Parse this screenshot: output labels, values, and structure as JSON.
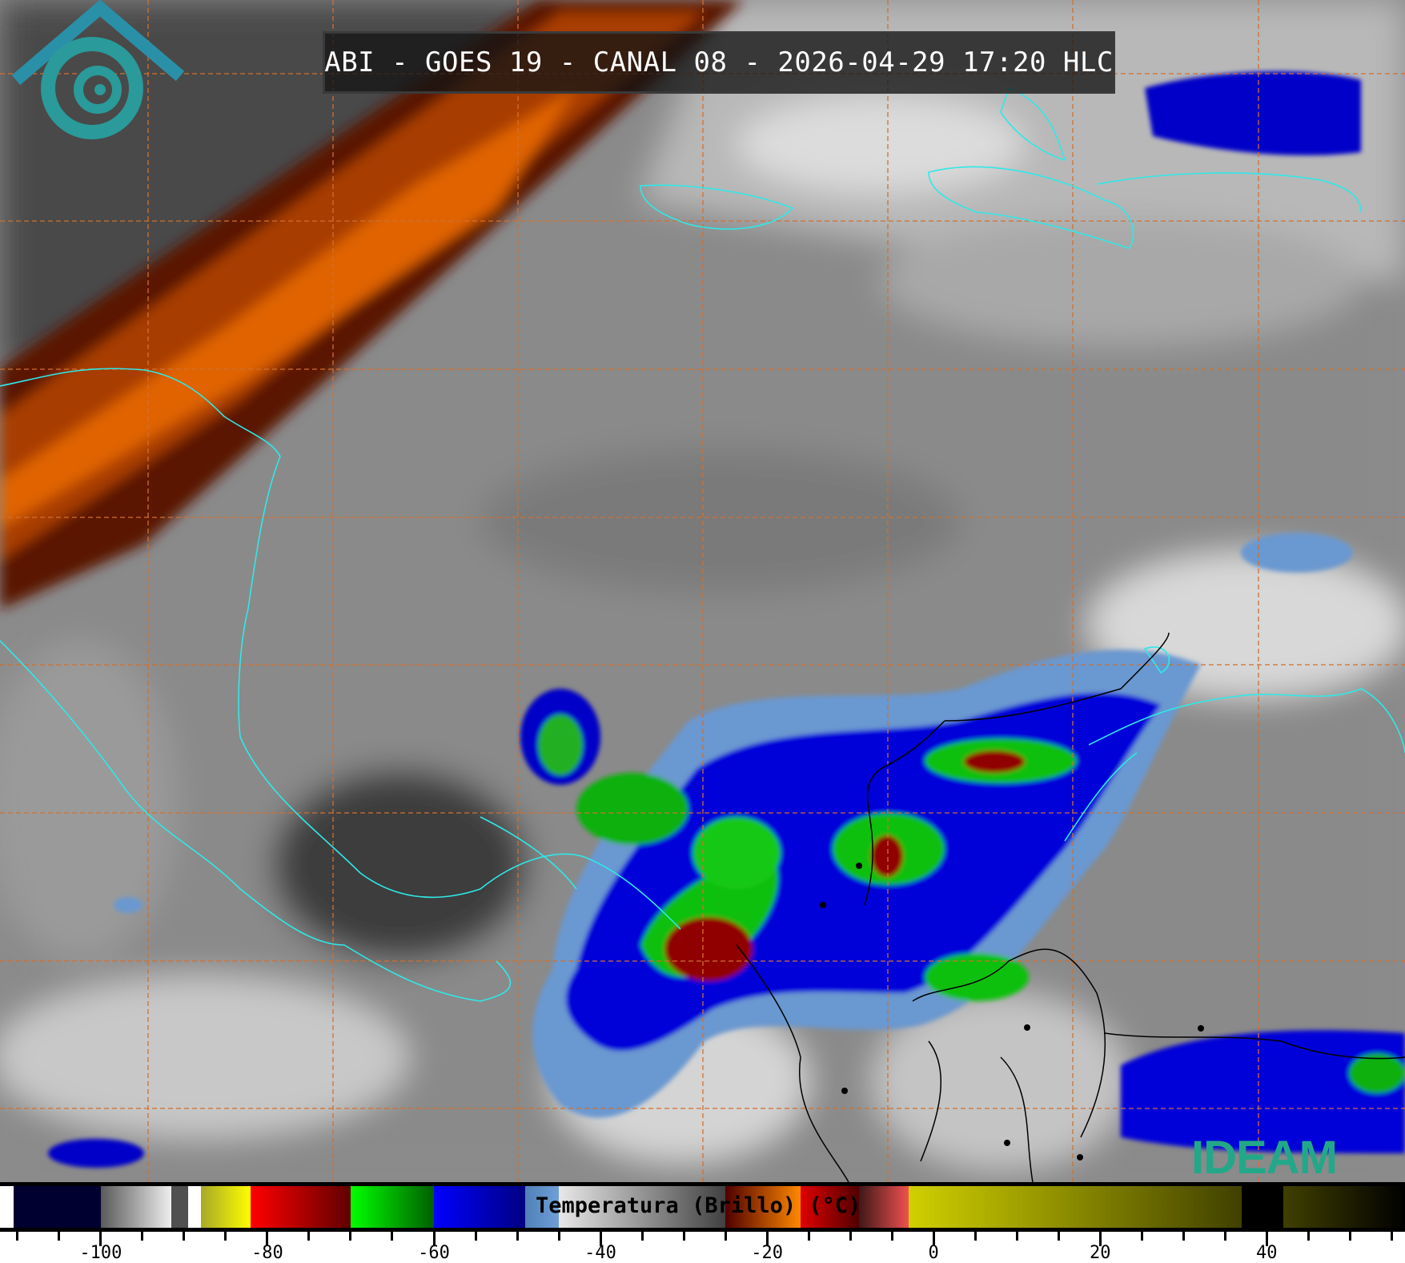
{
  "title": "ABI - GOES 19 - CANAL 08 - 2026-04-29 17:20 HLC",
  "logo": {
    "text": "IDEAM",
    "color": "#22a888",
    "emblem_color": "#2a9a9a"
  },
  "colorbar": {
    "label": "Temperatura (Brillo) (°C)",
    "range": [
      -112.1,
      56.6
    ],
    "tick_step": 5,
    "tick_labels": [
      "-100",
      "-80",
      "-60",
      "-40",
      "-20",
      "0",
      "20",
      "40"
    ],
    "segments": [
      {
        "from": -112.1,
        "to": -110.5,
        "c1": "#ffffff",
        "c2": "#ffffff"
      },
      {
        "from": -110.5,
        "to": -100,
        "c1": "#000030",
        "c2": "#000030"
      },
      {
        "from": -100,
        "to": -91.5,
        "c1": "#5a5a5a",
        "c2": "#f0f0f0"
      },
      {
        "from": -91.5,
        "to": -89.5,
        "c1": "#505050",
        "c2": "#505050"
      },
      {
        "from": -89.5,
        "to": -88,
        "c1": "#ffffff",
        "c2": "#ffffff"
      },
      {
        "from": -88,
        "to": -82,
        "c1": "#a8a828",
        "c2": "#ffff00"
      },
      {
        "from": -82,
        "to": -70,
        "c1": "#ff0000",
        "c2": "#600000"
      },
      {
        "from": -70,
        "to": -60,
        "c1": "#00ff00",
        "c2": "#006000"
      },
      {
        "from": -60,
        "to": -49,
        "c1": "#0000ff",
        "c2": "#000080"
      },
      {
        "from": -49,
        "to": -45,
        "c1": "#5080b8",
        "c2": "#70a0d8"
      },
      {
        "from": -45,
        "to": -25,
        "c1": "#e8e8e8",
        "c2": "#404040"
      },
      {
        "from": -25,
        "to": -16,
        "c1": "#500000",
        "c2": "#ff8800"
      },
      {
        "from": -16,
        "to": -9,
        "c1": "#e00000",
        "c2": "#500000"
      },
      {
        "from": -9,
        "to": -3,
        "c1": "#401818",
        "c2": "#f05050"
      },
      {
        "from": -3,
        "to": 37,
        "c1": "#d0d000",
        "c2": "#404000"
      },
      {
        "from": 37,
        "to": 42,
        "c1": "#000000",
        "c2": "#000000"
      },
      {
        "from": 42,
        "to": 56.6,
        "c1": "#404000",
        "c2": "#000000"
      }
    ]
  },
  "colors": {
    "grid": "#d07030",
    "coast": "#30e8e8",
    "borders": "#000000"
  }
}
